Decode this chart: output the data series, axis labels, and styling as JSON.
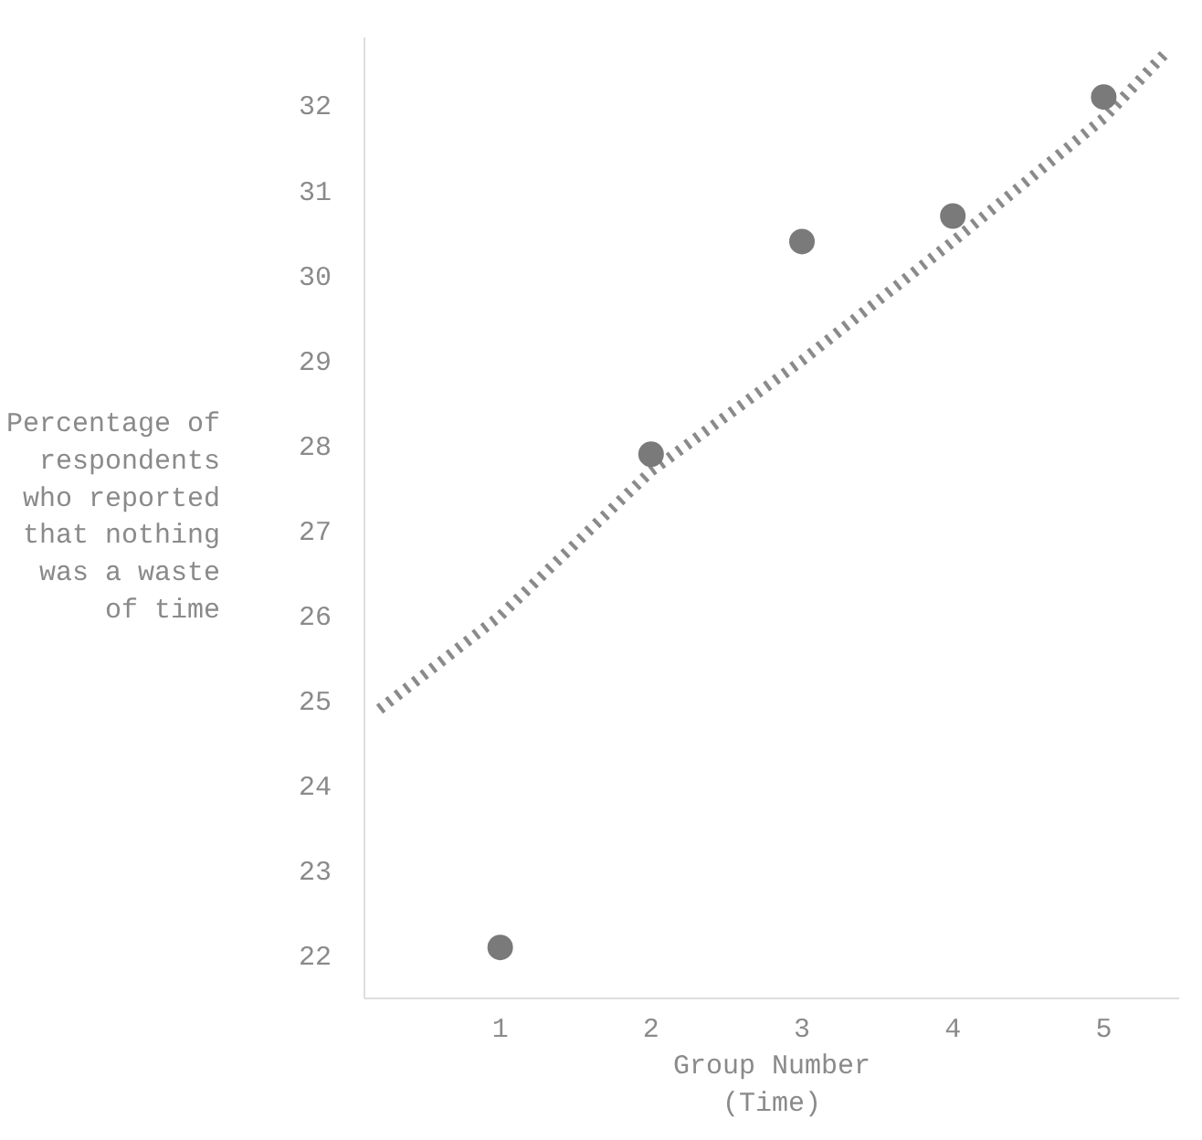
{
  "chart_data": {
    "type": "scatter",
    "xlabel": "Group Number (Time)",
    "ylabel": "Percentage of respondents who reported that nothing was a waste of time",
    "xlim": [
      0.1,
      5.5
    ],
    "ylim": [
      21.5,
      32.8
    ],
    "xticks": [
      1,
      2,
      3,
      4,
      5
    ],
    "yticks": [
      22,
      23,
      24,
      25,
      26,
      27,
      28,
      29,
      30,
      31,
      32
    ],
    "grid": false,
    "series": [
      {
        "type": "line",
        "color": "#8a8a8a",
        "line_style": "dotted",
        "x": [
          0.2,
          1,
          2,
          3,
          4,
          5,
          5.4
        ],
        "values": [
          24.9,
          26.0,
          27.7,
          29.0,
          30.4,
          31.85,
          32.6
        ]
      },
      {
        "color": "#7a7a7a",
        "marker": "circle",
        "x": [
          1,
          2,
          3,
          4,
          5
        ],
        "values": [
          22.1,
          27.9,
          30.4,
          30.7,
          32.1
        ]
      }
    ]
  }
}
